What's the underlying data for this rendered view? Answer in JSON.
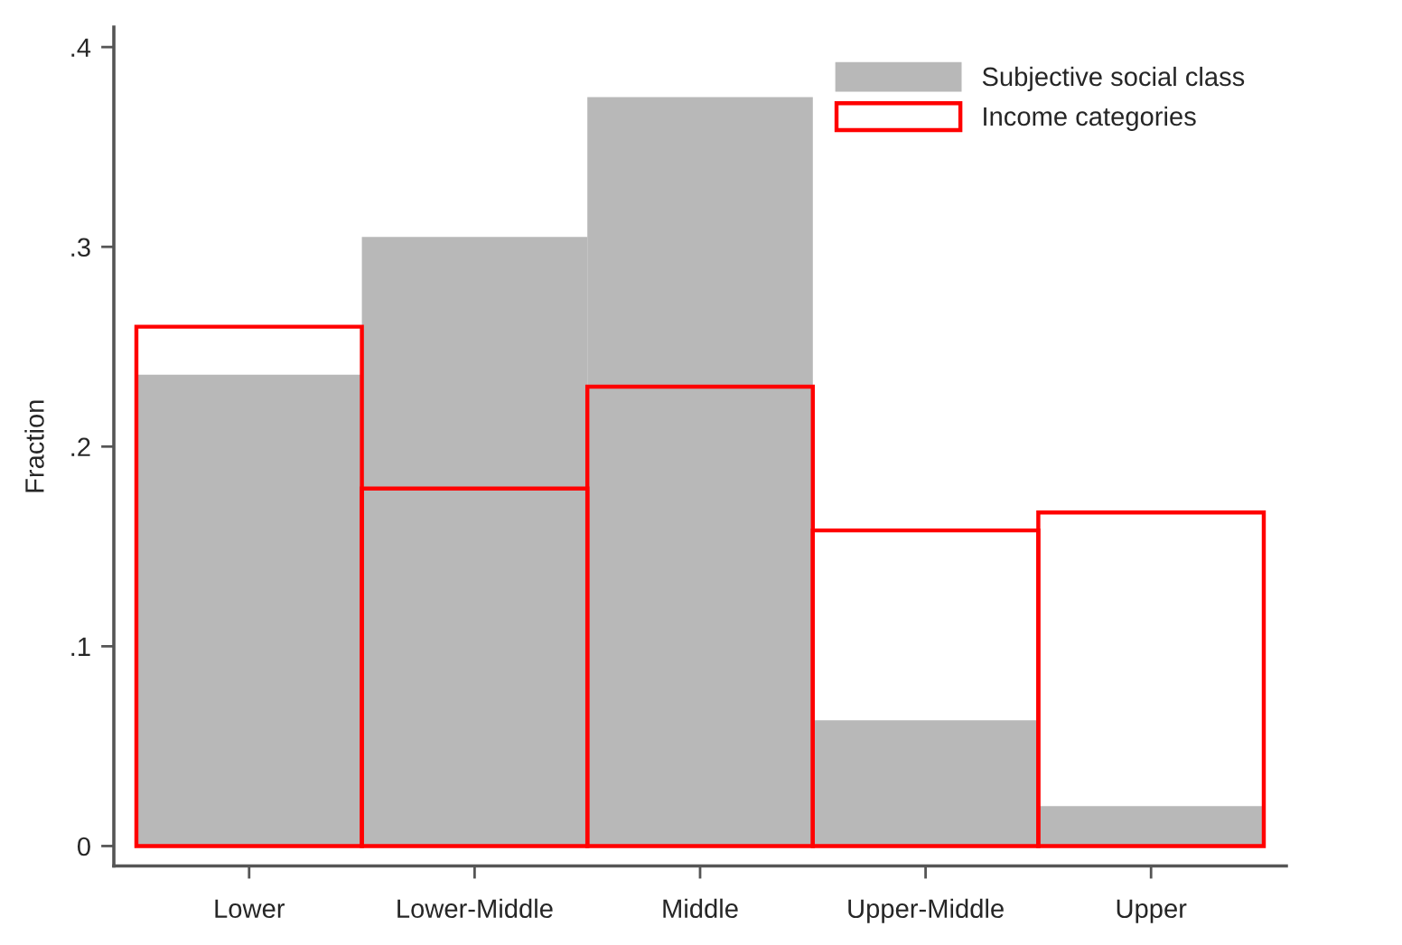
{
  "chart_data": {
    "type": "bar",
    "ylabel": "Fraction",
    "categories": [
      "Lower",
      "Lower-Middle",
      "Middle",
      "Upper-Middle",
      "Upper"
    ],
    "series": [
      {
        "name": "Subjective social class",
        "color": "#b8b8b8",
        "values": [
          0.236,
          0.305,
          0.375,
          0.063,
          0.02
        ]
      },
      {
        "name": "Income categories",
        "color": "#ff0000",
        "values": [
          0.26,
          0.179,
          0.23,
          0.158,
          0.167
        ]
      }
    ],
    "ylim": [
      -0.01,
      0.41
    ],
    "yticks": [
      0,
      {
        "value": 0.1,
        "label": ".1"
      },
      {
        "value": 0.2,
        "label": ".2"
      },
      {
        "value": 0.3,
        "label": ".3"
      },
      {
        "value": 0.4,
        "label": ".4"
      }
    ],
    "legend": "top right",
    "grid": false
  }
}
